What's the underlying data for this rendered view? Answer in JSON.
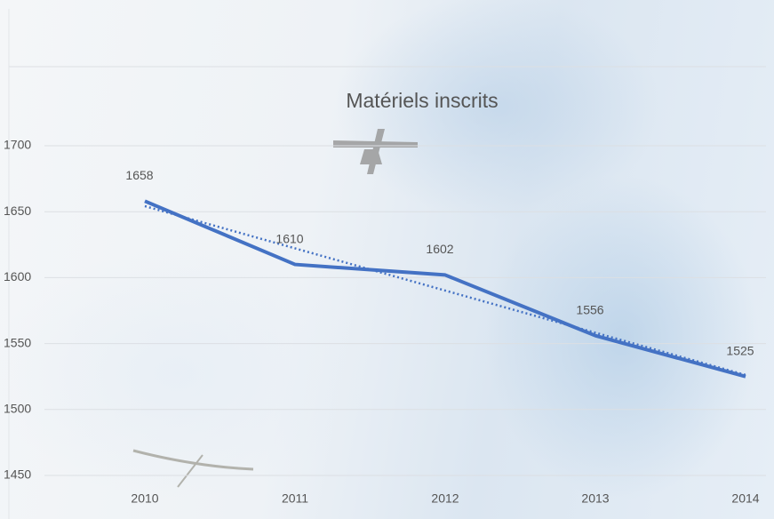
{
  "chart_data": {
    "type": "line",
    "title": "Matériels inscrits",
    "categories": [
      "2010",
      "2011",
      "2012",
      "2013",
      "2014"
    ],
    "values": [
      1658,
      1610,
      1602,
      1556,
      1525
    ],
    "color": "#4472c4",
    "ylim": [
      1450,
      1700
    ],
    "yticks": [
      1450,
      1500,
      1550,
      1600,
      1650,
      1700
    ],
    "grid": true,
    "trendline": true
  }
}
